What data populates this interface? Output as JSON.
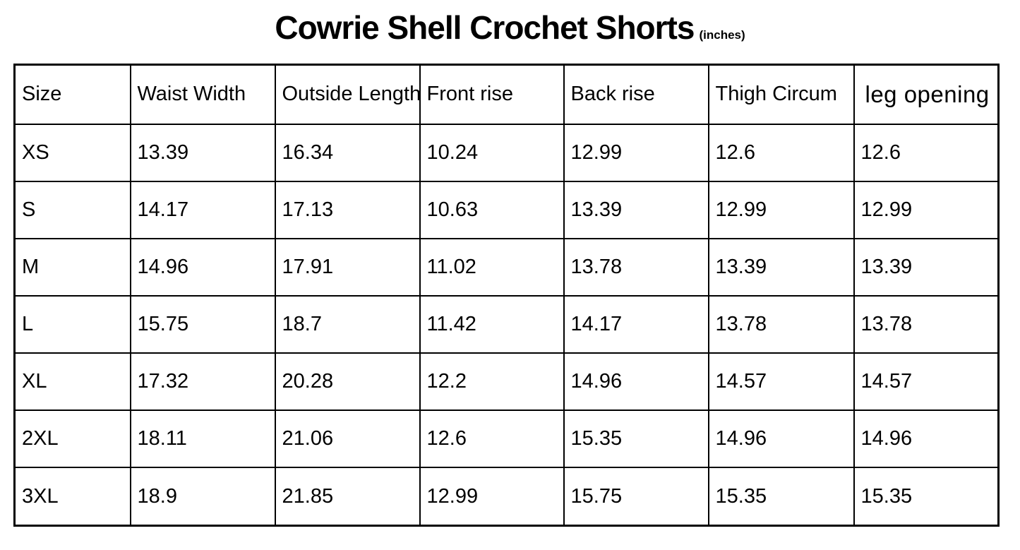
{
  "header": {
    "title": "Cowrie Shell Crochet Shorts",
    "unit_note": "(inches)"
  },
  "chart_data": {
    "type": "table",
    "title": "Cowrie Shell Crochet Shorts",
    "unit": "inches",
    "columns": [
      "Size",
      "Waist Width",
      "Outside Length",
      "Front rise",
      "Back rise",
      "Thigh Circum",
      "leg opening"
    ],
    "rows": [
      [
        "XS",
        "13.39",
        "16.34",
        "10.24",
        "12.99",
        "12.6",
        "12.6"
      ],
      [
        "S",
        "14.17",
        "17.13",
        "10.63",
        "13.39",
        "12.99",
        "12.99"
      ],
      [
        "M",
        "14.96",
        "17.91",
        "11.02",
        "13.78",
        "13.39",
        "13.39"
      ],
      [
        "L",
        "15.75",
        "18.7",
        "11.42",
        "14.17",
        "13.78",
        "13.78"
      ],
      [
        "XL",
        "17.32",
        "20.28",
        "12.2",
        "14.96",
        "14.57",
        "14.57"
      ],
      [
        "2XL",
        "18.11",
        "21.06",
        "12.6",
        "15.35",
        "14.96",
        "14.96"
      ],
      [
        "3XL",
        "18.9",
        "21.85",
        "12.99",
        "15.75",
        "15.35",
        "15.35"
      ]
    ],
    "colors": {
      "border": "#000000",
      "text": "#000000",
      "background": "#ffffff"
    }
  }
}
